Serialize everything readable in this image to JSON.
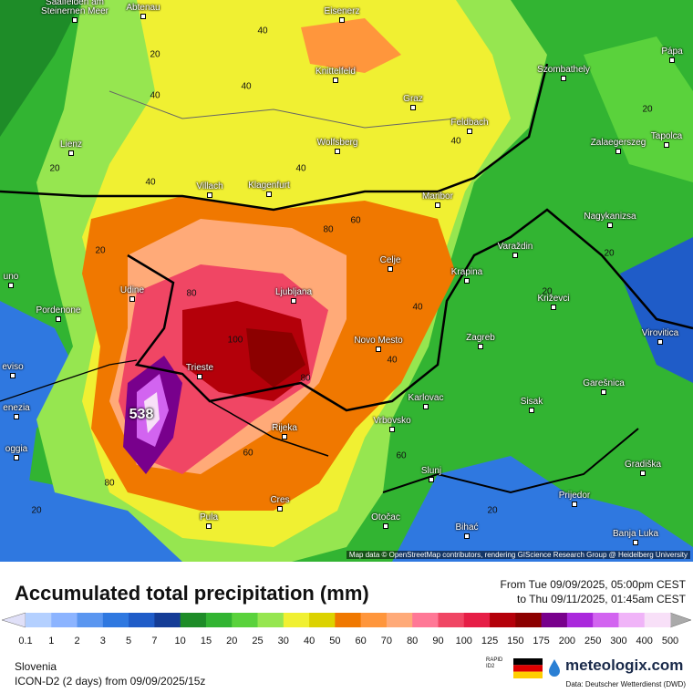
{
  "header": {
    "title": "Accumulated total precipitation (mm)",
    "from": "From Tue 09/09/2025, 05:00pm CEST",
    "to": "to Thu 09/11/2025, 01:45am CEST"
  },
  "credit": "Map data © OpenStreetMap contributors, rendering GIScience Research Group @ Heidelberg University",
  "map": {
    "cities": [
      "Abtenau",
      "Saalfelden am Steinernen Meer",
      "Eisenerz",
      "Pápa",
      "Knittelfeld",
      "Szombathely",
      "Graz",
      "Feldbach",
      "Lienz",
      "Wolfsberg",
      "Zalaegerszeg",
      "Tapolca",
      "Villach",
      "Klagenfurt",
      "Maribor",
      "Nagykanizsa",
      "Celje",
      "Varaždin",
      "Krapina",
      "Udine",
      "Ljubljana",
      "Križevci",
      "Pordenone",
      "Novo Mesto",
      "Zagreb",
      "Virovitica",
      "Trieste",
      "Garešnica",
      "Karlovac",
      "Sisak",
      "Rijeka",
      "Vrbovsko",
      "Gradiška",
      "Slunj",
      "Prijedor",
      "Cres",
      "Otočac",
      "Pula",
      "Bihać",
      "Banja Luka",
      "uno",
      "eviso",
      "enezia",
      "oggia"
    ],
    "contour_labels": [
      "40",
      "20",
      "40",
      "40",
      "20",
      "40",
      "20",
      "40",
      "80",
      "60",
      "80",
      "100",
      "80",
      "60",
      "40",
      "40",
      "20",
      "20",
      "20",
      "80",
      "60",
      "20",
      "40",
      "20",
      "538"
    ]
  },
  "legend": {
    "values": [
      0.1,
      1,
      2,
      3,
      5,
      7,
      10,
      15,
      20,
      25,
      30,
      40,
      50,
      60,
      70,
      80,
      90,
      100,
      125,
      150,
      175,
      200,
      250,
      300,
      400,
      500
    ],
    "colors": [
      "#e0e0f8",
      "#b4d0ff",
      "#8cb4ff",
      "#5a96f0",
      "#2f78e0",
      "#1f5cc8",
      "#143c96",
      "#1e8c28",
      "#32b432",
      "#5ad23c",
      "#96e650",
      "#f0f032",
      "#dcd200",
      "#f07800",
      "#ff963c",
      "#ffaa78",
      "#ff7896",
      "#f04664",
      "#e61e46",
      "#b4000a",
      "#8c0000",
      "#78008c",
      "#aa28dc",
      "#d264f0",
      "#f0b4f8",
      "#f8e0f8",
      "#dcdcdc",
      "#aaaaaa"
    ]
  },
  "footer": {
    "region": "Slovenia",
    "model": "ICON-D2 (2 days) from 09/09/2025/15z",
    "badge": "RAPID ID2",
    "brand": "meteologix.com",
    "source": "Data: Deutscher Wetterdienst (DWD)"
  }
}
